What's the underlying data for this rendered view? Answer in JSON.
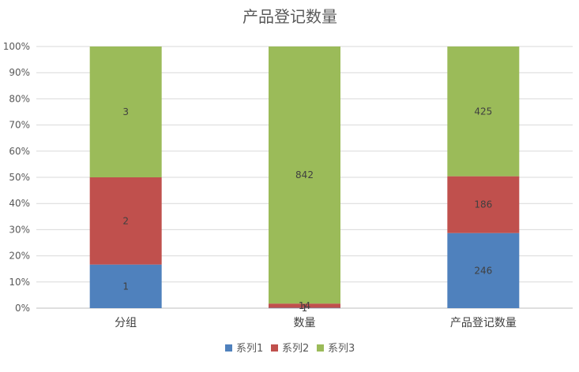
{
  "chart_data": {
    "type": "bar",
    "stacked": "percent",
    "title": "产品登记数量",
    "categories": [
      "分组",
      "数量",
      "产品登记数量"
    ],
    "series": [
      {
        "name": "系列1",
        "values": [
          1,
          1,
          246
        ],
        "labels": [
          "1",
          "1",
          "246"
        ],
        "color": "#4F81BD"
      },
      {
        "name": "系列2",
        "values": [
          2,
          14,
          186
        ],
        "labels": [
          "2",
          "14",
          "186"
        ],
        "color": "#C0504D"
      },
      {
        "name": "系列3",
        "values": [
          3,
          842,
          425
        ],
        "labels": [
          "3",
          "842",
          "425"
        ],
        "color": "#9BBB59"
      }
    ],
    "yticks": [
      "0%",
      "10%",
      "20%",
      "30%",
      "40%",
      "50%",
      "60%",
      "70%",
      "80%",
      "90%",
      "100%"
    ],
    "ylim": [
      0,
      100
    ],
    "grid": true,
    "legend": "bottom"
  }
}
